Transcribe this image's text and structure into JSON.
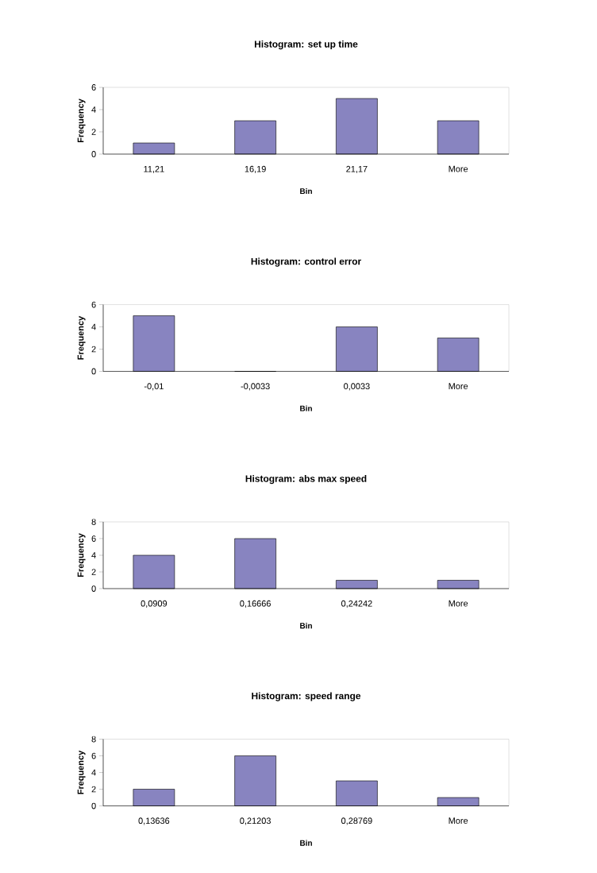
{
  "chart_data": [
    {
      "type": "bar",
      "title": "Histogram: set up time",
      "xlabel": "Bin",
      "ylabel": "Frequency",
      "categories": [
        "11,21",
        "16,19",
        "21,17",
        "More"
      ],
      "values": [
        1,
        3,
        5,
        3
      ],
      "color": "#8884c0",
      "ylim": [
        0,
        6
      ],
      "yticks": [
        0,
        2,
        4,
        6
      ]
    },
    {
      "type": "bar",
      "title": "Histogram: control error",
      "xlabel": "Bin",
      "ylabel": "Frequency",
      "categories": [
        "-0,01",
        "-0,0033",
        "0,0033",
        "More"
      ],
      "values": [
        5,
        0,
        4,
        3
      ],
      "color": "#8884c0",
      "ylim": [
        0,
        6
      ],
      "yticks": [
        0,
        2,
        4,
        6
      ]
    },
    {
      "type": "bar",
      "title": "Histogram: abs max speed",
      "xlabel": "Bin",
      "ylabel": "Frequency",
      "categories": [
        "0,0909",
        "0,16666",
        "0,24242",
        "More"
      ],
      "values": [
        4,
        6,
        1,
        1
      ],
      "color": "#8884c0",
      "ylim": [
        0,
        8
      ],
      "yticks": [
        0,
        2,
        4,
        6,
        8
      ]
    },
    {
      "type": "bar",
      "title": "Histogram: speed range",
      "xlabel": "Bin",
      "ylabel": "Frequency",
      "categories": [
        "0,13636",
        "0,21203",
        "0,28769",
        "More"
      ],
      "values": [
        2,
        6,
        3,
        1
      ],
      "color": "#8884c0",
      "ylim": [
        0,
        8
      ],
      "yticks": [
        0,
        2,
        4,
        6,
        8
      ]
    }
  ]
}
